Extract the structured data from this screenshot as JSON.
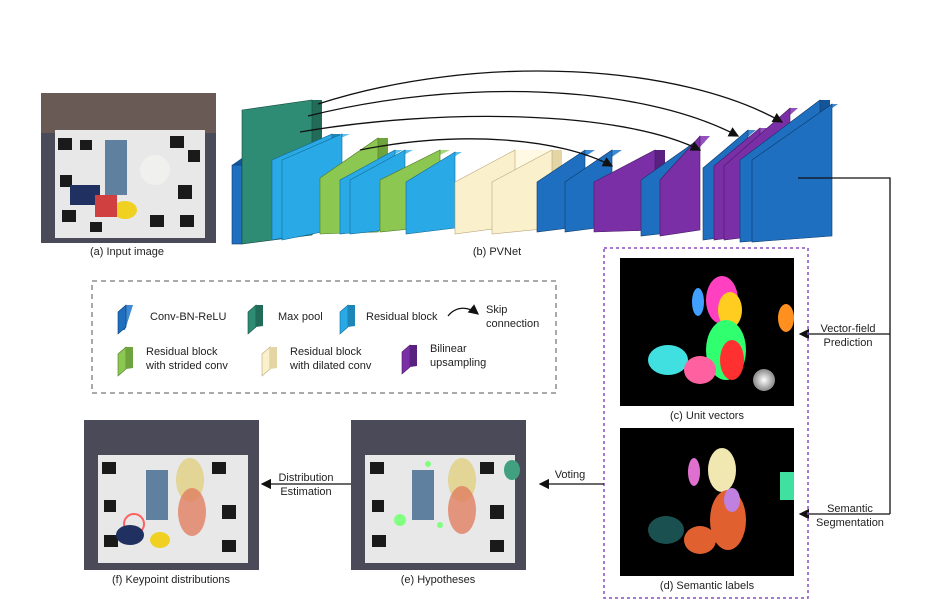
{
  "captions": {
    "input": "(a) Input image",
    "pvnet": "(b) PVNet",
    "unit_vectors": "(c) Unit vectors",
    "semantic_labels": "(d) Semantic labels",
    "hypotheses": "(e) Hypotheses",
    "keypoints": "(f) Keypoint distributions"
  },
  "legend": {
    "conv": "Conv-BN-ReLU",
    "maxpool": "Max pool",
    "residual": "Residual block",
    "skip_line1": "Skip",
    "skip_line2": "connection",
    "strided_line1": "Residual block",
    "strided_line2": "with strided conv",
    "dilated_line1": "Residual block",
    "dilated_line2": "with dilated conv",
    "upsample_line1": "Bilinear",
    "upsample_line2": "upsampling"
  },
  "arrows": {
    "vector_field_line1": "Vector-field",
    "vector_field_line2": "Prediction",
    "semantic_line1": "Semantic",
    "semantic_line2": "Segmentation",
    "voting": "Voting",
    "distribution_line1": "Distribution",
    "distribution_line2": "Estimation"
  },
  "colors": {
    "conv": "#1f6fc0",
    "maxpool": "#2e8b74",
    "residual": "#29a9e6",
    "strided": "#8cc751",
    "dilated": "#fbf0cc",
    "upsample": "#7b2fa6",
    "dashed_box": "#8a4fc4"
  }
}
